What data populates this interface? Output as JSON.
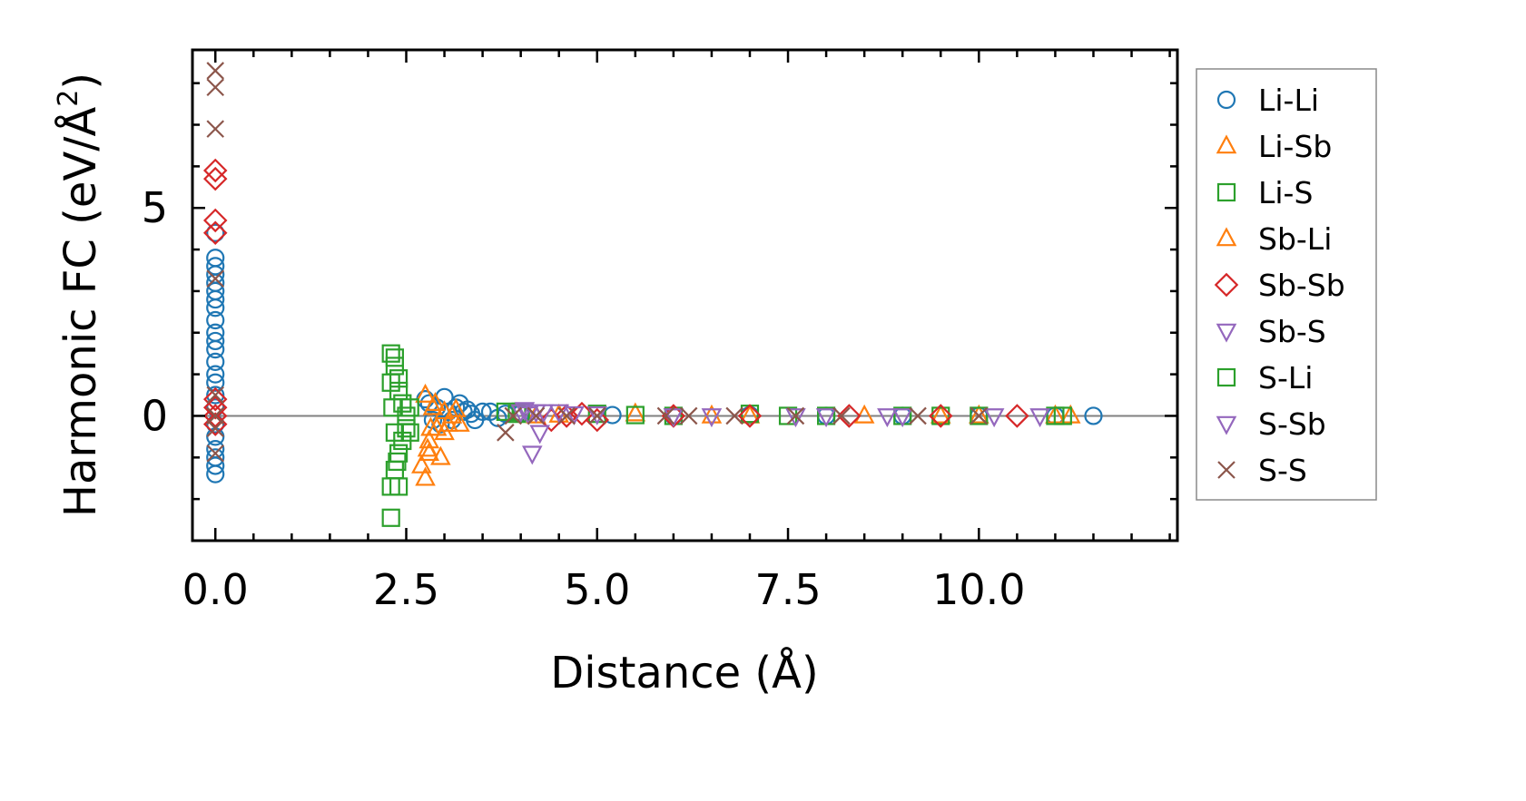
{
  "chart_data": {
    "type": "scatter",
    "title": "",
    "xlabel": "Distance (Å)",
    "ylabel_main": "Harmonic FC (eV/Å",
    "ylabel_sup": "2",
    "ylabel_close": ")",
    "xlim": [
      -0.3,
      12.6
    ],
    "ylim": [
      -3.0,
      8.8
    ],
    "xticks": [
      0.0,
      2.5,
      5.0,
      7.5,
      10.0
    ],
    "xtick_labels": [
      "0.0",
      "2.5",
      "5.0",
      "7.5",
      "10.0"
    ],
    "yticks": [
      0,
      5
    ],
    "ytick_labels": [
      "0",
      "5"
    ],
    "reference_line_y": 0,
    "legend_position": "right",
    "legend": [
      {
        "name": "Li-Li",
        "marker": "circle",
        "color": "#1f77b4"
      },
      {
        "name": "Li-Sb",
        "marker": "triangle-up",
        "color": "#ff7f0e"
      },
      {
        "name": "Li-S",
        "marker": "square",
        "color": "#2ca02c"
      },
      {
        "name": "Sb-Li",
        "marker": "triangle-up",
        "color": "#ff7f0e"
      },
      {
        "name": "Sb-Sb",
        "marker": "diamond",
        "color": "#d62728"
      },
      {
        "name": "Sb-S",
        "marker": "triangle-down",
        "color": "#9467bd"
      },
      {
        "name": "S-Li",
        "marker": "square",
        "color": "#2ca02c"
      },
      {
        "name": "S-Sb",
        "marker": "triangle-down",
        "color": "#9467bd"
      },
      {
        "name": "S-S",
        "marker": "x",
        "color": "#8c564b"
      }
    ],
    "series": [
      {
        "name": "Li-Li",
        "marker": "circle",
        "color": "#1f77b4",
        "points": [
          [
            0,
            4.4
          ],
          [
            0,
            3.8
          ],
          [
            0,
            3.6
          ],
          [
            0,
            3.4
          ],
          [
            0,
            3.2
          ],
          [
            0,
            3.0
          ],
          [
            0,
            2.8
          ],
          [
            0,
            2.6
          ],
          [
            0,
            2.3
          ],
          [
            0,
            2.0
          ],
          [
            0,
            1.8
          ],
          [
            0,
            1.6
          ],
          [
            0,
            1.3
          ],
          [
            0,
            1.0
          ],
          [
            0,
            0.8
          ],
          [
            0,
            0.5
          ],
          [
            0,
            0.2
          ],
          [
            0,
            -0.2
          ],
          [
            0,
            -0.5
          ],
          [
            0,
            -0.8
          ],
          [
            0,
            -1.0
          ],
          [
            0,
            -1.2
          ],
          [
            0,
            -1.4
          ],
          [
            2.75,
            0.4
          ],
          [
            2.8,
            0.3
          ],
          [
            2.85,
            -0.1
          ],
          [
            2.9,
            0.2
          ],
          [
            2.95,
            -0.2
          ],
          [
            3.0,
            0.45
          ],
          [
            3.05,
            0.1
          ],
          [
            3.1,
            -0.1
          ],
          [
            3.15,
            0.2
          ],
          [
            3.2,
            0.3
          ],
          [
            3.25,
            0.1
          ],
          [
            3.3,
            0.15
          ],
          [
            3.35,
            0.05
          ],
          [
            3.4,
            -0.1
          ],
          [
            3.5,
            0.1
          ],
          [
            3.6,
            0.1
          ],
          [
            3.7,
            -0.05
          ],
          [
            3.8,
            0.05
          ],
          [
            4.0,
            0.05
          ],
          [
            5.2,
            0.02
          ],
          [
            6.0,
            0.0
          ],
          [
            7.0,
            0.02
          ],
          [
            8.0,
            0.0
          ],
          [
            9.0,
            0.0
          ],
          [
            10.0,
            0.0
          ],
          [
            11.0,
            0.0
          ],
          [
            11.5,
            0.0
          ]
        ]
      },
      {
        "name": "Li-Sb",
        "marker": "triangle-up",
        "color": "#ff7f0e",
        "points": [
          [
            2.75,
            0.5
          ],
          [
            2.8,
            -0.6
          ],
          [
            2.8,
            -0.9
          ],
          [
            2.85,
            0.2
          ],
          [
            2.9,
            -0.3
          ],
          [
            2.95,
            -1.0
          ],
          [
            3.0,
            0.1
          ],
          [
            3.0,
            -0.4
          ],
          [
            3.1,
            0.0
          ],
          [
            3.2,
            -0.2
          ],
          [
            4.2,
            0.0
          ],
          [
            5.5,
            0.05
          ],
          [
            7.0,
            0.0
          ],
          [
            8.5,
            0.0
          ],
          [
            10.0,
            0.0
          ],
          [
            11.0,
            0.0
          ]
        ]
      },
      {
        "name": "Sb-Li",
        "marker": "triangle-up",
        "color": "#ff7f0e",
        "points": [
          [
            2.7,
            -1.2
          ],
          [
            2.75,
            -1.5
          ],
          [
            2.78,
            -0.8
          ],
          [
            2.82,
            -0.3
          ],
          [
            2.88,
            0.3
          ],
          [
            3.05,
            -0.2
          ],
          [
            3.15,
            0.15
          ],
          [
            4.5,
            0.02
          ],
          [
            6.5,
            0.0
          ],
          [
            9.5,
            0.0
          ],
          [
            11.2,
            0.0
          ]
        ]
      },
      {
        "name": "Li-S",
        "marker": "square",
        "color": "#2ca02c",
        "points": [
          [
            2.35,
            1.4
          ],
          [
            2.35,
            1.2
          ],
          [
            2.4,
            0.9
          ],
          [
            2.4,
            0.6
          ],
          [
            2.45,
            0.3
          ],
          [
            2.5,
            0.0
          ],
          [
            2.5,
            -0.3
          ],
          [
            2.45,
            -0.6
          ],
          [
            2.4,
            -0.9
          ],
          [
            2.35,
            -1.3
          ],
          [
            2.4,
            -1.7
          ],
          [
            3.8,
            0.1
          ],
          [
            4.0,
            0.1
          ],
          [
            5.0,
            0.05
          ],
          [
            6.0,
            0.0
          ],
          [
            7.0,
            0.05
          ],
          [
            8.0,
            0.0
          ],
          [
            9.0,
            0.0
          ],
          [
            10.0,
            0.0
          ],
          [
            11.0,
            0.0
          ]
        ]
      },
      {
        "name": "S-Li",
        "marker": "square",
        "color": "#2ca02c",
        "points": [
          [
            2.3,
            1.5
          ],
          [
            2.3,
            0.8
          ],
          [
            2.32,
            0.2
          ],
          [
            2.35,
            -0.4
          ],
          [
            2.38,
            -1.1
          ],
          [
            2.3,
            -1.7
          ],
          [
            2.3,
            -2.45
          ],
          [
            2.55,
            0.2
          ],
          [
            2.55,
            -0.4
          ],
          [
            3.95,
            0.05
          ],
          [
            5.5,
            0.02
          ],
          [
            7.5,
            0.0
          ],
          [
            9.5,
            0.0
          ],
          [
            11.1,
            0.0
          ]
        ]
      },
      {
        "name": "Sb-Sb",
        "marker": "diamond",
        "color": "#d62728",
        "points": [
          [
            0,
            5.9
          ],
          [
            0,
            5.7
          ],
          [
            0,
            4.7
          ],
          [
            0,
            4.4
          ],
          [
            0,
            0.4
          ],
          [
            0,
            0.2
          ],
          [
            0,
            0.0
          ],
          [
            0,
            -0.2
          ],
          [
            4.4,
            -0.1
          ],
          [
            4.6,
            0.0
          ],
          [
            4.8,
            0.05
          ],
          [
            5.0,
            -0.1
          ],
          [
            6.0,
            0.0
          ],
          [
            7.0,
            0.0
          ],
          [
            8.3,
            0.0
          ],
          [
            9.5,
            0.0
          ],
          [
            10.5,
            0.0
          ]
        ]
      },
      {
        "name": "Sb-S",
        "marker": "triangle-down",
        "color": "#9467bd",
        "points": [
          [
            4.0,
            0.1
          ],
          [
            4.1,
            0.05
          ],
          [
            4.15,
            -0.9
          ],
          [
            4.2,
            0.1
          ],
          [
            4.25,
            -0.4
          ],
          [
            4.5,
            0.1
          ],
          [
            5.0,
            0.05
          ],
          [
            6.5,
            0.0
          ],
          [
            8.0,
            0.0
          ],
          [
            9.0,
            0.0
          ]
        ]
      },
      {
        "name": "S-Sb",
        "marker": "triangle-down",
        "color": "#9467bd",
        "points": [
          [
            4.05,
            0.15
          ],
          [
            4.3,
            0.1
          ],
          [
            4.7,
            0.05
          ],
          [
            6.0,
            0.0
          ],
          [
            7.6,
            0.0
          ],
          [
            8.8,
            0.0
          ],
          [
            10.2,
            0.0
          ],
          [
            10.8,
            0.0
          ]
        ]
      },
      {
        "name": "S-S",
        "marker": "x",
        "color": "#8c564b",
        "points": [
          [
            0,
            8.3
          ],
          [
            0,
            7.9
          ],
          [
            0,
            6.9
          ],
          [
            0,
            3.3
          ],
          [
            0,
            0.5
          ],
          [
            0,
            0.0
          ],
          [
            0,
            -0.3
          ],
          [
            0,
            -0.9
          ],
          [
            3.8,
            -0.4
          ],
          [
            3.9,
            0.0
          ],
          [
            4.2,
            0.0
          ],
          [
            4.6,
            0.0
          ],
          [
            5.0,
            0.0
          ],
          [
            5.9,
            0.0
          ],
          [
            6.2,
            0.0
          ],
          [
            6.8,
            0.0
          ],
          [
            7.6,
            0.0
          ],
          [
            8.2,
            0.0
          ],
          [
            9.2,
            0.0
          ],
          [
            10.0,
            0.0
          ]
        ]
      }
    ]
  }
}
